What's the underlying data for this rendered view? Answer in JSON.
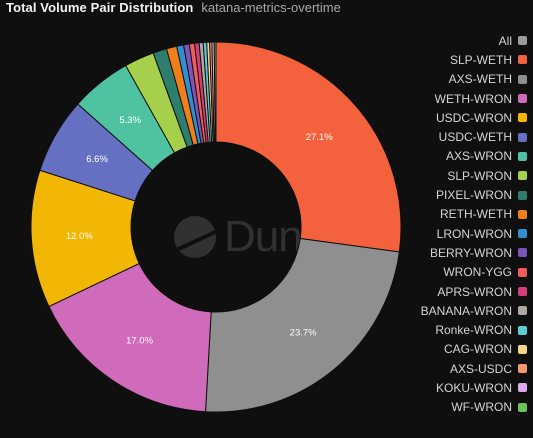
{
  "header": {
    "title": "Total Volume Pair Distribution",
    "subtitle": "katana-metrics-overtime"
  },
  "watermark": {
    "text": "Dune"
  },
  "chart_data": {
    "type": "pie",
    "donut": true,
    "legend_position": "right",
    "legend_all": {
      "label": "All",
      "color": "#9b9b9b"
    },
    "slices": [
      {
        "name": "SLP-WETH",
        "value": 27.1,
        "label": "27.1%",
        "color": "#f4623d"
      },
      {
        "name": "AXS-WETH",
        "value": 23.7,
        "label": "23.7%",
        "color": "#8f8f8f"
      },
      {
        "name": "WETH-WRON",
        "value": 17.0,
        "label": "17.0%",
        "color": "#d06aba"
      },
      {
        "name": "USDC-WRON",
        "value": 12.0,
        "label": "12.0%",
        "color": "#f2b705"
      },
      {
        "name": "USDC-WETH",
        "value": 6.6,
        "label": "6.6%",
        "color": "#6670c2"
      },
      {
        "name": "AXS-WRON",
        "value": 5.3,
        "label": "5.3%",
        "color": "#4fc3a1"
      },
      {
        "name": "SLP-WRON",
        "value": 2.6,
        "label": "",
        "color": "#a6cf4b"
      },
      {
        "name": "PIXEL-WRON",
        "value": 1.2,
        "label": "",
        "color": "#2f7d6d"
      },
      {
        "name": "RETH-WETH",
        "value": 0.9,
        "label": "",
        "color": "#ef7f1a"
      },
      {
        "name": "LRON-WRON",
        "value": 0.6,
        "label": "",
        "color": "#2f8fd3"
      },
      {
        "name": "BERRY-WRON",
        "value": 0.5,
        "label": "",
        "color": "#7b55b8"
      },
      {
        "name": "WRON-YGG",
        "value": 0.45,
        "label": "",
        "color": "#f25c5c"
      },
      {
        "name": "APRS-WRON",
        "value": 0.4,
        "label": "",
        "color": "#d43c7c"
      },
      {
        "name": "BANANA-WRON",
        "value": 0.35,
        "label": "",
        "color": "#b0a89c"
      },
      {
        "name": "Ronke-WRON",
        "value": 0.3,
        "label": "",
        "color": "#5ecbd6"
      },
      {
        "name": "CAG-WRON",
        "value": 0.25,
        "label": "",
        "color": "#f5d58a"
      },
      {
        "name": "AXS-USDC",
        "value": 0.2,
        "label": "",
        "color": "#f29a6e"
      },
      {
        "name": "KOKU-WRON",
        "value": 0.2,
        "label": "",
        "color": "#e0a8f0"
      },
      {
        "name": "WF-WRON",
        "value": 0.15,
        "label": "",
        "color": "#6dc05a"
      }
    ]
  }
}
